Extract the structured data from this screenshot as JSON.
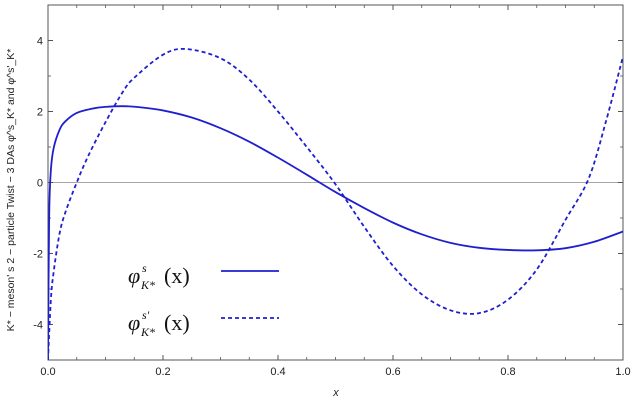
{
  "chart_data": {
    "type": "line",
    "xlabel": "x",
    "ylabel": "K* − meson' s 2 − particle Twist − 3 DAs φ^s_K* and φ^s'_K*",
    "xlim": [
      0,
      1
    ],
    "ylim": [
      -5,
      5
    ],
    "x_ticks": [
      "0.0",
      "0.2",
      "0.4",
      "0.6",
      "0.8",
      "1.0"
    ],
    "y_ticks": [
      "-4",
      "-2",
      "0",
      "2",
      "4"
    ],
    "x_tick_values": [
      0,
      0.2,
      0.4,
      0.6,
      0.8,
      1.0
    ],
    "y_tick_values": [
      -4,
      -2,
      0,
      2,
      4
    ],
    "grid": false,
    "legend_position": "bottom-left",
    "series": [
      {
        "name": "φ^s_K*(x)",
        "legend_main": "φ",
        "legend_sup": "s",
        "legend_sub": "K*",
        "legend_tail": "(x)",
        "style": "solid",
        "color": "#1f1fd0",
        "x": [
          0.0,
          0.002,
          0.005,
          0.01,
          0.02,
          0.03,
          0.05,
          0.08,
          0.1,
          0.13,
          0.16,
          0.2,
          0.25,
          0.3,
          0.35,
          0.4,
          0.45,
          0.5,
          0.55,
          0.6,
          0.65,
          0.7,
          0.75,
          0.8,
          0.85,
          0.9,
          0.95,
          1.0
        ],
        "y": [
          -5.0,
          -1.0,
          0.35,
          0.98,
          1.48,
          1.72,
          1.96,
          2.09,
          2.13,
          2.15,
          2.12,
          2.03,
          1.83,
          1.53,
          1.15,
          0.7,
          0.22,
          -0.27,
          -0.72,
          -1.13,
          -1.46,
          -1.7,
          -1.84,
          -1.9,
          -1.91,
          -1.85,
          -1.67,
          -1.38
        ]
      },
      {
        "name": "φ^s'_K*(x)",
        "legend_main": "φ",
        "legend_sup": "s'",
        "legend_sub": "K*",
        "legend_tail": "(x)",
        "style": "dashed",
        "color": "#1f1fd0",
        "x": [
          0.0,
          0.005,
          0.01,
          0.02,
          0.03,
          0.05,
          0.07,
          0.1,
          0.13,
          0.15,
          0.2,
          0.24,
          0.3,
          0.35,
          0.4,
          0.45,
          0.5,
          0.55,
          0.6,
          0.65,
          0.7,
          0.75,
          0.8,
          0.85,
          0.9,
          0.94,
          0.97,
          1.0
        ],
        "y": [
          -5.0,
          -3.3,
          -2.5,
          -1.45,
          -0.85,
          0.0,
          0.75,
          1.7,
          2.55,
          2.95,
          3.6,
          3.76,
          3.5,
          2.9,
          2.0,
          1.0,
          -0.05,
          -1.25,
          -2.35,
          -3.15,
          -3.6,
          -3.68,
          -3.3,
          -2.45,
          -1.05,
          0.1,
          1.7,
          3.55
        ]
      }
    ]
  }
}
